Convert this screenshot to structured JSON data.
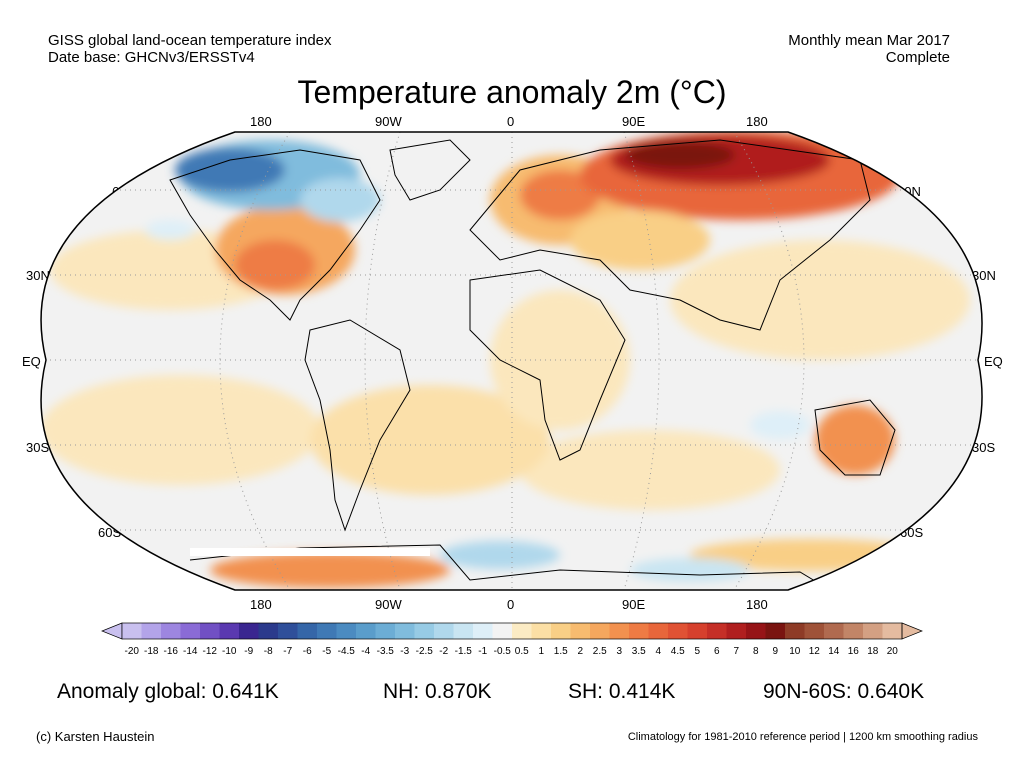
{
  "header": {
    "line1_left": "GISS global land-ocean temperature index",
    "line2_left": "Date base: GHCNv3/ERSSTv4",
    "line1_right": "Monthly mean Mar 2017",
    "line2_right": "Complete"
  },
  "title": "Temperature anomaly 2m (°C)",
  "map": {
    "projection": "Robinson",
    "lon_labels": [
      "180",
      "90W",
      "0",
      "90E",
      "180"
    ],
    "lat_labels": [
      "60N",
      "30N",
      "EQ",
      "30S",
      "60S"
    ],
    "ocean_color": "#f2f2f2"
  },
  "colorbar": {
    "ticks": [
      "-20",
      "-18",
      "-16",
      "-14",
      "-12",
      "-10",
      "-9",
      "-8",
      "-7",
      "-6",
      "-5",
      "-4.5",
      "-4",
      "-3.5",
      "-3",
      "-2.5",
      "-2",
      "-1.5",
      "-1",
      "-0.5",
      "0.5",
      "1",
      "1.5",
      "2",
      "2.5",
      "3",
      "3.5",
      "4",
      "4.5",
      "5",
      "6",
      "7",
      "8",
      "9",
      "10",
      "12",
      "14",
      "16",
      "18",
      "20"
    ],
    "colors": [
      "#c9c0ef",
      "#b3a4e9",
      "#9d86e0",
      "#8a6bd6",
      "#7150c4",
      "#5a39b0",
      "#3a2690",
      "#2b3a8c",
      "#2f4f9a",
      "#3566a8",
      "#3f79b5",
      "#4b8bc1",
      "#5a9dcb",
      "#6cadd5",
      "#80bcdd",
      "#97cbe5",
      "#b0d8ec",
      "#c9e5f2",
      "#deeff8",
      "#f3f3f3",
      "#fbebc4",
      "#fbdfa5",
      "#f9cf86",
      "#f7bb6f",
      "#f5a75e",
      "#f2914f",
      "#ee7b44",
      "#e8663b",
      "#e05234",
      "#d6402d",
      "#c52f27",
      "#b01f1f",
      "#961417",
      "#7a1410",
      "#8e3b26",
      "#9f5238",
      "#b06a4f",
      "#c28567",
      "#d3a083",
      "#e4bba0"
    ]
  },
  "stats": {
    "global": "Anomaly global: 0.641K",
    "nh": "NH: 0.870K",
    "sh": "SH: 0.414K",
    "polar": "90N-60S: 0.640K"
  },
  "footer": {
    "credit": "(c) Karsten Haustein",
    "note": "Climatology for 1981-2010 reference period | 1200 km smoothing radius"
  }
}
